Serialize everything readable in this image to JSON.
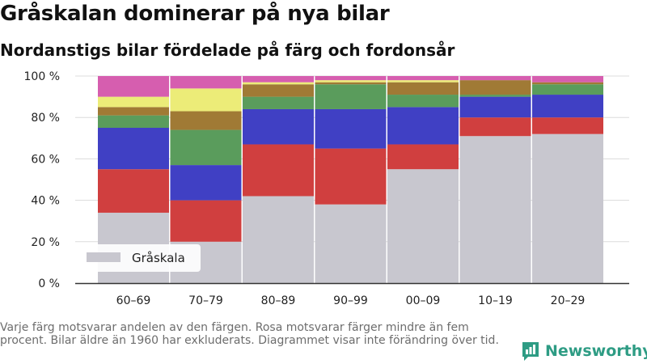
{
  "header": {
    "title": "Gråskalan dominerar på nya bilar",
    "subtitle": "Nordanstigs bilar fördelade på färg och fordonsår"
  },
  "footer": {
    "note": "Varje färg motsvarar andelen av den färgen. Rosa motsvarar färger mindre än fem procent. Bilar äldre än 1960 har exkluderats. Diagrammet visar inte förändring över tid.",
    "brand": "Newsworthy",
    "brand_icon": "newsworthy-logo-icon"
  },
  "chart_data": {
    "type": "bar",
    "stacked": true,
    "percent_stacked": true,
    "title": "Gråskalan dominerar på nya bilar",
    "subtitle": "Nordanstigs bilar fördelade på färg och fordonsår",
    "categories": [
      "60–69",
      "70–79",
      "80–89",
      "90–99",
      "00–09",
      "10–19",
      "20–29"
    ],
    "yticks": [
      "0 %",
      "20 %",
      "40 %",
      "60 %",
      "80 %",
      "100 %"
    ],
    "ylim": [
      0,
      100
    ],
    "grid": true,
    "legend_position": "bottom-left",
    "legend": [
      "Gråskala"
    ],
    "series": [
      {
        "name": "Gråskala",
        "color": "#c8c7cf",
        "values": [
          34,
          20,
          42,
          38,
          55,
          71,
          72
        ]
      },
      {
        "color": "#d03f3f",
        "values": [
          21,
          20,
          25,
          27,
          12,
          9,
          8
        ]
      },
      {
        "color": "#4040c4",
        "values": [
          20,
          17,
          17,
          19,
          18,
          10,
          11
        ]
      },
      {
        "color": "#5a9c5c",
        "values": [
          6,
          17,
          6,
          12,
          6,
          1,
          5
        ]
      },
      {
        "color": "#a07a35",
        "values": [
          4,
          9,
          6,
          1,
          6,
          7,
          1
        ]
      },
      {
        "color": "#ecec78",
        "values": [
          5,
          11,
          1,
          1,
          1,
          0,
          0
        ]
      },
      {
        "color": "#d65eaf",
        "values": [
          10,
          6,
          3,
          2,
          2,
          2,
          3
        ]
      }
    ]
  }
}
